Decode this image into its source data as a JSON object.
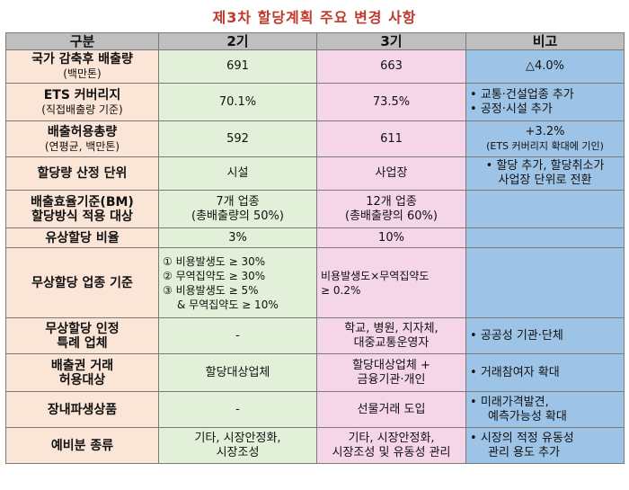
{
  "title": "제3차 할당계획 주요 변경 사항",
  "header": {
    "c0": "구분",
    "c1": "2기",
    "c2": "3기",
    "c3": "비고"
  },
  "rows": [
    {
      "cat_main": "국가 감축후 배출량",
      "cat_sub": "(백만톤)",
      "v2": [
        "691"
      ],
      "v3": [
        "663"
      ],
      "rm": [
        "△4.0%"
      ]
    },
    {
      "cat_main": "ETS 커버리지",
      "cat_sub": "(직접배출량 기준)",
      "v2": [
        "70.1%"
      ],
      "v3": [
        "73.5%"
      ],
      "rm": [
        "교통·건설업종 추가",
        "공정·시설 추가"
      ]
    },
    {
      "cat_main": "배출허용총량",
      "cat_sub": "(연평균, 백만톤)",
      "v2": [
        "592"
      ],
      "v3": [
        "611"
      ],
      "rm": [
        "+3.2%",
        "(ETS 커버리지 확대에 기인)"
      ]
    },
    {
      "cat_main": "할당량 산정 단위",
      "cat_sub": "",
      "v2": [
        "시설"
      ],
      "v3": [
        "사업장"
      ],
      "rm": [
        "할당 추가, 할당취소가",
        "사업장 단위로 전환"
      ]
    },
    {
      "cat_main": "배출효율기준(BM)",
      "cat_main2": "할당방식 적용 대상",
      "v2": [
        "7개 업종",
        "(총배출량의 50%)"
      ],
      "v3": [
        "12개 업종",
        "(총배출량의 60%)"
      ],
      "rm": []
    },
    {
      "cat_main": "유상할당 비율",
      "v2": [
        "3%"
      ],
      "v3": [
        "10%"
      ],
      "rm": []
    },
    {
      "cat_main": "무상할당 업종 기준",
      "v2": [
        "① 비용발생도 ≥ 30%",
        "② 무역집약도 ≥ 30%",
        "③ 비용발생도 ≥ 5%",
        "& 무역집약도 ≥ 10%"
      ],
      "v3": [
        "비용발생도×무역집약도",
        "≥ 0.2%"
      ],
      "rm": []
    },
    {
      "cat_main": "무상할당 인정",
      "cat_main2": "특례 업체",
      "v2": [
        "-"
      ],
      "v3": [
        "학교, 병원, 지자체,",
        "대중교통운영자"
      ],
      "rm": [
        "공공성 기관·단체"
      ]
    },
    {
      "cat_main": "배출권 거래",
      "cat_main2": "허용대상",
      "v2": [
        "할당대상업체"
      ],
      "v3": [
        "할당대상업체 +",
        "금융기관·개인"
      ],
      "rm": [
        "거래참여자 확대"
      ]
    },
    {
      "cat_main": "장내파생상품",
      "v2": [
        "-"
      ],
      "v3": [
        "선물거래 도입"
      ],
      "rm": [
        "미래가격발견,",
        "예측가능성 확대"
      ]
    },
    {
      "cat_main": "예비분 종류",
      "v2": [
        "기타, 시장안정화,",
        "시장조성"
      ],
      "v3": [
        "기타, 시장안정화,",
        "시장조성 및 유동성 관리"
      ],
      "rm": [
        "시장의 적정 유동성",
        "관리 용도 추가"
      ]
    }
  ]
}
